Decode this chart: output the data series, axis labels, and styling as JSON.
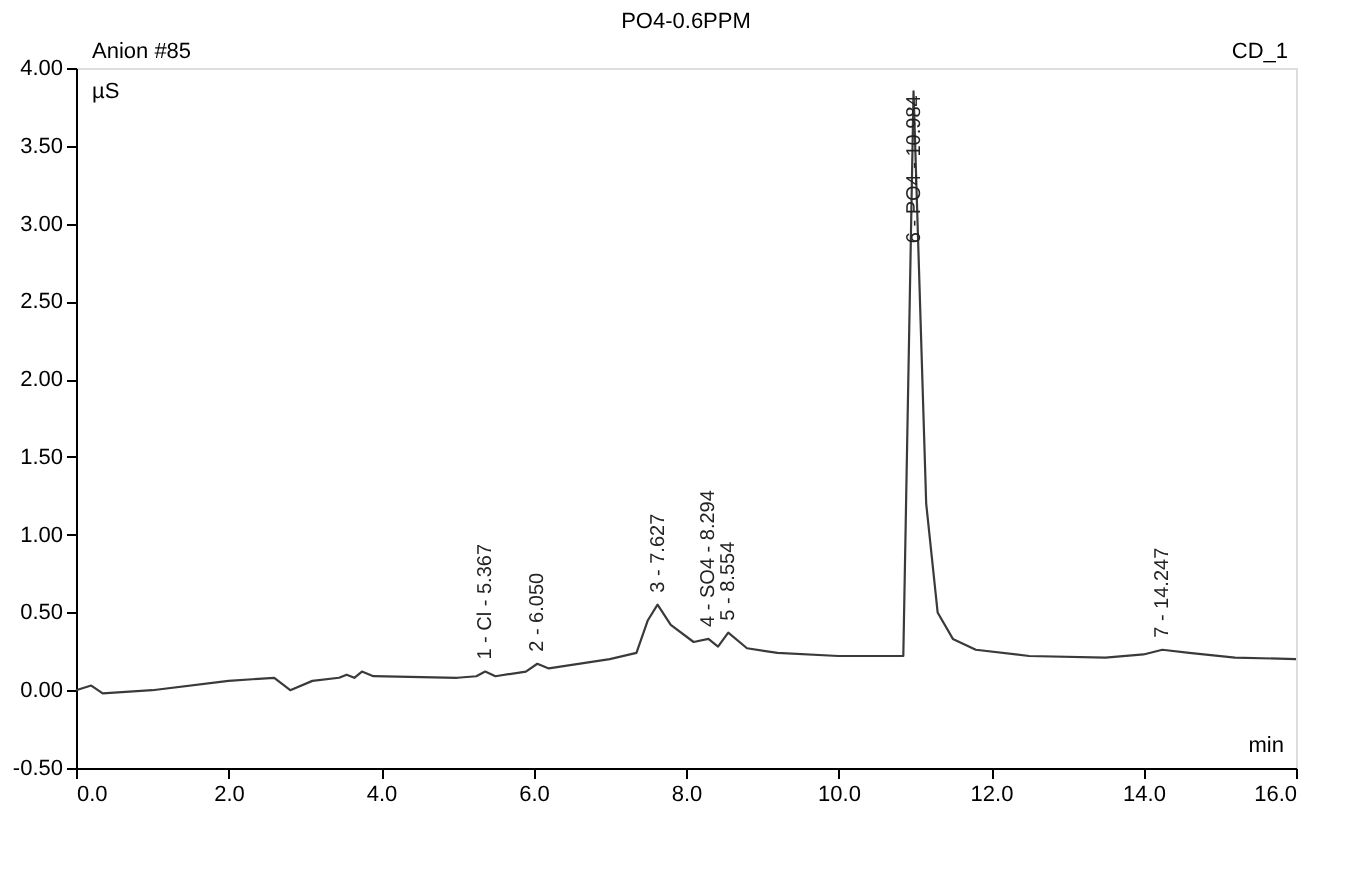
{
  "chart_data": {
    "type": "line",
    "title": "PO4-0.6PPM",
    "ylabel": "µS",
    "xlabel": "min",
    "x": [
      0,
      0.2,
      0.35,
      1.0,
      2.0,
      2.6,
      2.81,
      3.1,
      3.45,
      3.55,
      3.65,
      3.75,
      3.9,
      5.0,
      5.25,
      5.367,
      5.5,
      5.9,
      6.05,
      6.2,
      7.0,
      7.35,
      7.5,
      7.627,
      7.8,
      8.1,
      8.294,
      8.42,
      8.554,
      8.8,
      9.2,
      10.0,
      10.85,
      10.984,
      11.15,
      11.3,
      11.5,
      11.8,
      12.5,
      13.5,
      14.0,
      14.247,
      14.6,
      15.2,
      16.0
    ],
    "series": [
      {
        "color": "#3a3a3a",
        "values": [
          0.0,
          0.03,
          -0.02,
          0.0,
          0.06,
          0.08,
          0.0,
          0.06,
          0.08,
          0.1,
          0.08,
          0.12,
          0.09,
          0.08,
          0.09,
          0.12,
          0.09,
          0.12,
          0.17,
          0.14,
          0.2,
          0.24,
          0.45,
          0.55,
          0.42,
          0.31,
          0.33,
          0.28,
          0.37,
          0.27,
          0.24,
          0.22,
          0.22,
          3.85,
          1.2,
          0.5,
          0.33,
          0.26,
          0.22,
          0.21,
          0.23,
          0.26,
          0.24,
          0.21,
          0.2
        ]
      }
    ],
    "xlim": [
      0,
      16
    ],
    "ylim": [
      -0.5,
      4.0
    ],
    "xticks": [
      {
        "value": 0,
        "label": "0.0"
      },
      {
        "value": 2,
        "label": "2.0"
      },
      {
        "value": 4,
        "label": "4.0"
      },
      {
        "value": 6,
        "label": "6.0"
      },
      {
        "value": 8,
        "label": "8.0"
      },
      {
        "value": 10,
        "label": "10.0"
      },
      {
        "value": 12,
        "label": "12.0"
      },
      {
        "value": 14,
        "label": "14.0"
      },
      {
        "value": 16,
        "label": "16.0"
      }
    ],
    "yticks": [
      {
        "value": -0.5,
        "label": "-0.50"
      },
      {
        "value": 0,
        "label": "0.00"
      },
      {
        "value": 0.5,
        "label": "0.50"
      },
      {
        "value": 1,
        "label": "1.00"
      },
      {
        "value": 1.5,
        "label": "1.50"
      },
      {
        "value": 2,
        "label": "2.00"
      },
      {
        "value": 2.5,
        "label": "2.50"
      },
      {
        "value": 3,
        "label": "3.00"
      },
      {
        "value": 3.5,
        "label": "3.50"
      },
      {
        "value": 4,
        "label": "4.00"
      }
    ],
    "grid": false,
    "marker": "none",
    "line_style": "solid",
    "annotations": [
      "Anion #85",
      "CD_1",
      {
        "text": "1 - Cl - 5.367",
        "x": 5.367,
        "y": 0.12
      },
      {
        "text": "2 - 6.050",
        "x": 6.05,
        "y": 0.17
      },
      {
        "text": "3 - 7.627",
        "x": 7.627,
        "y": 0.55
      },
      {
        "text": "4 - SO4 - 8.294",
        "x": 8.294,
        "y": 0.33
      },
      {
        "text": "5 - 8.554",
        "x": 8.554,
        "y": 0.37
      },
      {
        "text": "6 - PO4 - 10.984",
        "x": 10.984,
        "y": 3.85
      },
      {
        "text": "7 - 14.247",
        "x": 14.247,
        "y": 0.26
      }
    ]
  }
}
